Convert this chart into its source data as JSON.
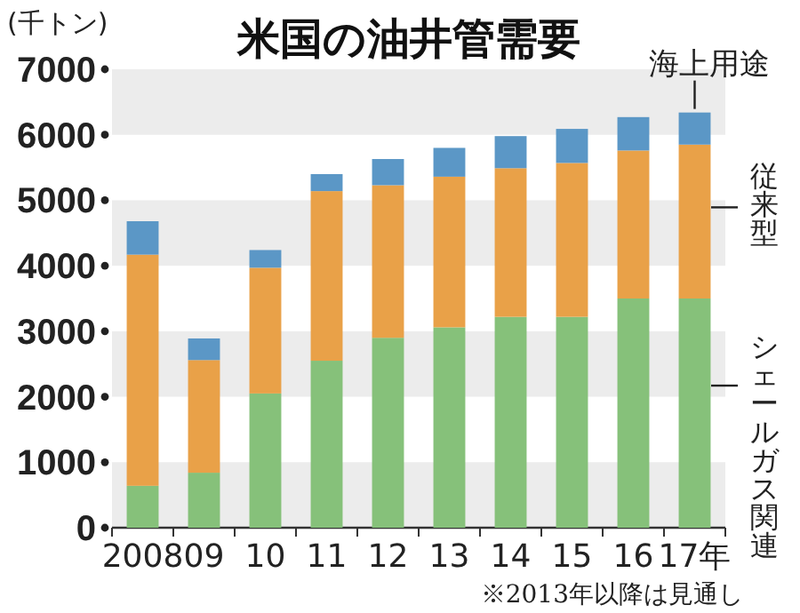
{
  "chart_data": {
    "type": "bar",
    "title": "米国の油井管需要",
    "ylabel": "(千トン)",
    "categories": [
      "2008",
      "09",
      "10",
      "11",
      "12",
      "13",
      "14",
      "15",
      "16",
      "17年"
    ],
    "stacked": true,
    "series": [
      {
        "name": "シェールガス関連",
        "color": "#86c17a",
        "values": [
          640,
          840,
          2050,
          2550,
          2900,
          3060,
          3220,
          3220,
          3500,
          3500
        ]
      },
      {
        "name": "従来型",
        "color": "#e9a148",
        "values": [
          3530,
          1720,
          1920,
          2590,
          2330,
          2300,
          2270,
          2350,
          2260,
          2350
        ]
      },
      {
        "name": "海上用途",
        "color": "#5b97c6",
        "values": [
          510,
          330,
          270,
          260,
          400,
          440,
          490,
          520,
          510,
          490
        ]
      }
    ],
    "ylim": [
      0,
      7000
    ],
    "yticks": [
      0,
      1000,
      2000,
      3000,
      4000,
      5000,
      6000,
      7000
    ],
    "bands": [
      {
        "axis": "y",
        "from": 0,
        "to": 1000,
        "color": "#ececec"
      },
      {
        "axis": "y",
        "from": 2000,
        "to": 3000,
        "color": "#ececec"
      },
      {
        "axis": "y",
        "from": 4000,
        "to": 5000,
        "color": "#ececec"
      },
      {
        "axis": "y",
        "from": 6000,
        "to": 7000,
        "color": "#ececec"
      }
    ],
    "annotations": [
      "※2013年以降は見通し"
    ]
  }
}
